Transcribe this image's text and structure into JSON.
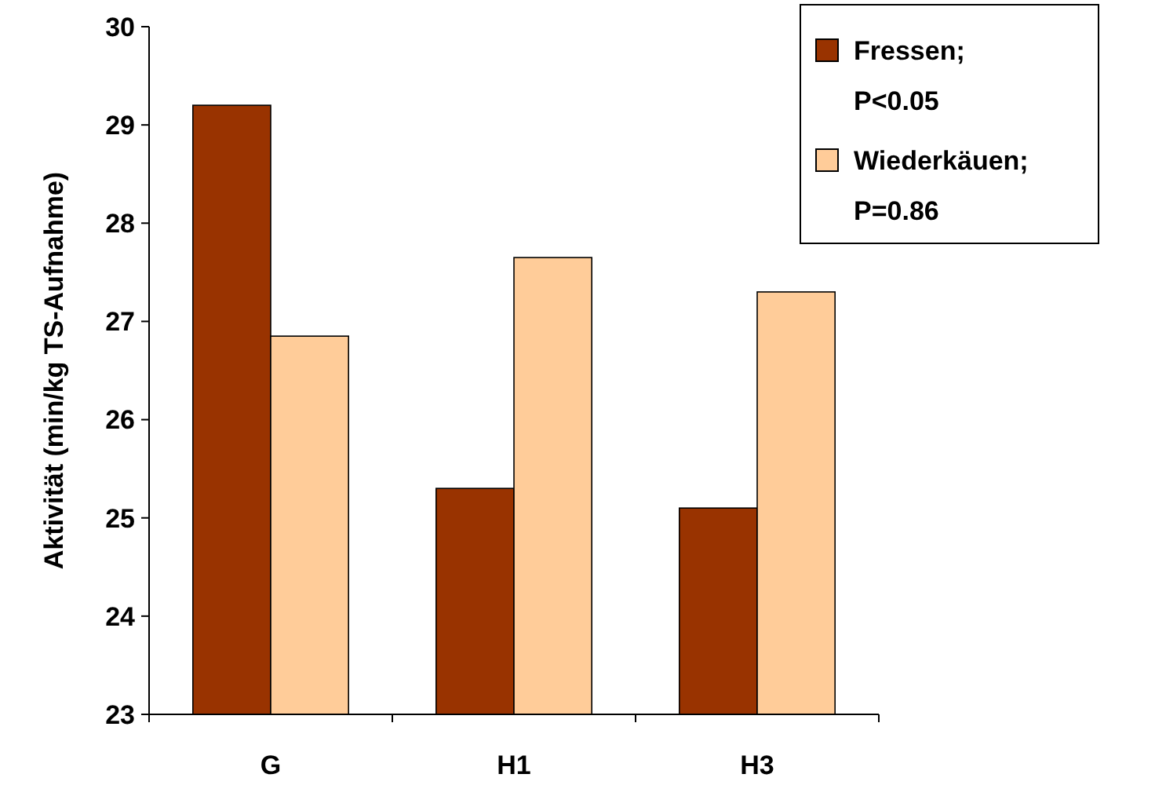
{
  "chart_data": {
    "type": "bar",
    "ylabel": "Aktivität (min/kg TS-Aufnahme)",
    "categories": [
      "G",
      "H1",
      "H3"
    ],
    "series": [
      {
        "name": "Fressen; P<0.05",
        "color": "#993300",
        "values": [
          29.2,
          25.3,
          25.1
        ]
      },
      {
        "name": "Wiederkäuen; P=0.86",
        "color": "#ffcc99",
        "values": [
          26.85,
          27.65,
          27.3
        ]
      }
    ],
    "ylim": [
      23,
      30
    ],
    "yticks": [
      23,
      24,
      25,
      26,
      27,
      28,
      29,
      30
    ],
    "grid": false,
    "legend": "top right"
  }
}
